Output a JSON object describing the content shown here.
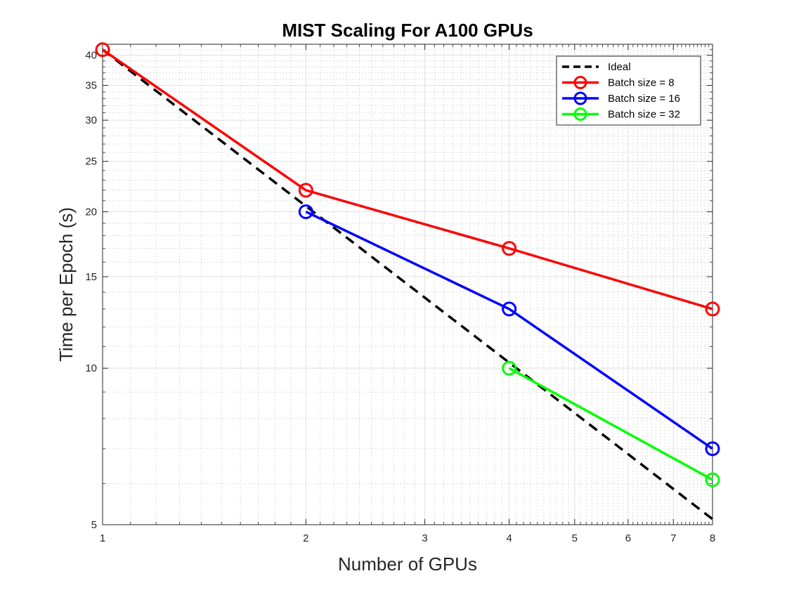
{
  "chart_data": {
    "type": "line",
    "title": "MIST Scaling For A100 GPUs",
    "xlabel": "Number of GPUs",
    "ylabel": "Time per Epoch (s)",
    "xscale": "log",
    "yscale": "log",
    "xlim": [
      1,
      8
    ],
    "ylim": [
      5,
      42
    ],
    "xticks": [
      1,
      2,
      3,
      4,
      5,
      6,
      7,
      8
    ],
    "xtick_labels": [
      "1",
      "2",
      "3",
      "4",
      "5",
      "6",
      "7",
      "8"
    ],
    "yticks": [
      5,
      10,
      15,
      20,
      25,
      30,
      35,
      40
    ],
    "ytick_labels": [
      "5",
      "10",
      "15",
      "20",
      "25",
      "30",
      "35",
      "40"
    ],
    "grid": true,
    "legend_position": "top-right",
    "series": [
      {
        "name": "Ideal",
        "x": [
          1,
          2,
          4,
          8
        ],
        "y": [
          41,
          20.5,
          10.25,
          5.125
        ],
        "color": "#000000",
        "style": "dashed",
        "marker": "none"
      },
      {
        "name": "Batch size = 8",
        "x": [
          1,
          2,
          4,
          8
        ],
        "y": [
          41,
          22,
          17,
          13
        ],
        "color": "#ff0000",
        "style": "solid",
        "marker": "circle"
      },
      {
        "name": "Batch size = 16",
        "x": [
          2,
          4,
          8
        ],
        "y": [
          20,
          13,
          7
        ],
        "color": "#0000ff",
        "style": "solid",
        "marker": "circle"
      },
      {
        "name": "Batch size = 32",
        "x": [
          4,
          8
        ],
        "y": [
          10,
          6.1
        ],
        "color": "#00ff00",
        "style": "solid",
        "marker": "circle"
      }
    ]
  }
}
